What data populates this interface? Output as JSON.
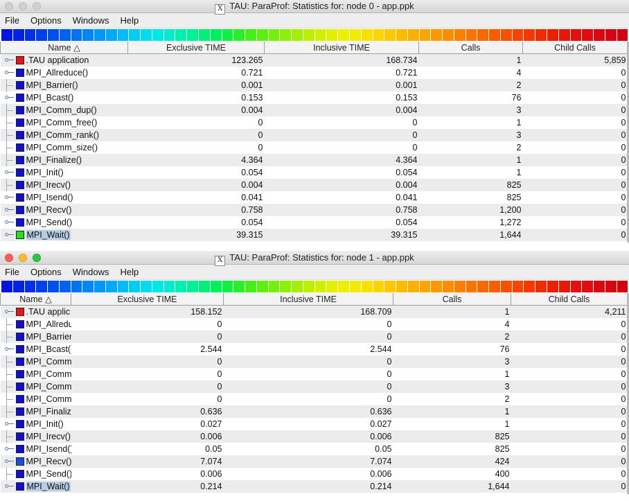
{
  "windows": [
    {
      "title": "TAU: ParaProf: Statistics for: node 0 - app.ppk",
      "active": false,
      "menu": [
        "File",
        "Options",
        "Windows",
        "Help"
      ],
      "columns": [
        "Name △",
        "Exclusive TIME",
        "Inclusive TIME",
        "Calls",
        "Child Calls"
      ],
      "rows": [
        {
          "name": ".TAU application",
          "excl": "123.265",
          "incl": "168.734",
          "calls": "1",
          "child": "5,859",
          "color": "#e8141b",
          "tree": "key"
        },
        {
          "name": "MPI_Allreduce()",
          "excl": "0.721",
          "incl": "0.721",
          "calls": "4",
          "child": "0",
          "color": "#1010d0",
          "tree": "key"
        },
        {
          "name": "MPI_Barrier()",
          "excl": "0.001",
          "incl": "0.001",
          "calls": "2",
          "child": "0",
          "color": "#1010d0",
          "tree": "line"
        },
        {
          "name": "MPI_Bcast()",
          "excl": "0.153",
          "incl": "0.153",
          "calls": "76",
          "child": "0",
          "color": "#1010d0",
          "tree": "key"
        },
        {
          "name": "MPI_Comm_dup()",
          "excl": "0.004",
          "incl": "0.004",
          "calls": "3",
          "child": "0",
          "color": "#1010d0",
          "tree": "line"
        },
        {
          "name": "MPI_Comm_free()",
          "excl": "0",
          "incl": "0",
          "calls": "1",
          "child": "0",
          "color": "#1010d0",
          "tree": "line"
        },
        {
          "name": "MPI_Comm_rank()",
          "excl": "0",
          "incl": "0",
          "calls": "3",
          "child": "0",
          "color": "#1010d0",
          "tree": "line"
        },
        {
          "name": "MPI_Comm_size()",
          "excl": "0",
          "incl": "0",
          "calls": "2",
          "child": "0",
          "color": "#1010d0",
          "tree": "line"
        },
        {
          "name": "MPI_Finalize()",
          "excl": "4.364",
          "incl": "4.364",
          "calls": "1",
          "child": "0",
          "color": "#1010d0",
          "tree": "line"
        },
        {
          "name": "MPI_Init()",
          "excl": "0.054",
          "incl": "0.054",
          "calls": "1",
          "child": "0",
          "color": "#1010d0",
          "tree": "key"
        },
        {
          "name": "MPI_Irecv()",
          "excl": "0.004",
          "incl": "0.004",
          "calls": "825",
          "child": "0",
          "color": "#1010d0",
          "tree": "line"
        },
        {
          "name": "MPI_Isend()",
          "excl": "0.041",
          "incl": "0.041",
          "calls": "825",
          "child": "0",
          "color": "#1010d0",
          "tree": "key"
        },
        {
          "name": "MPI_Recv()",
          "excl": "0.758",
          "incl": "0.758",
          "calls": "1,200",
          "child": "0",
          "color": "#1010d0",
          "tree": "key"
        },
        {
          "name": "MPI_Send()",
          "excl": "0.054",
          "incl": "0.054",
          "calls": "1,272",
          "child": "0",
          "color": "#1010d0",
          "tree": "key"
        },
        {
          "name": "MPI_Wait()",
          "excl": "39.315",
          "incl": "39.315",
          "calls": "1,644",
          "child": "0",
          "color": "#22dd22",
          "tree": "key",
          "selected": true
        }
      ]
    },
    {
      "title": "TAU: ParaProf: Statistics for: node 1 - app.ppk",
      "active": true,
      "menu": [
        "File",
        "Options",
        "Windows",
        "Help"
      ],
      "columns": [
        "Name △",
        "Exclusive TIME",
        "Inclusive TIME",
        "Calls",
        "Child Calls"
      ],
      "rows": [
        {
          "name": ".TAU applic",
          "excl": "158.152",
          "incl": "168.709",
          "calls": "1",
          "child": "4,211",
          "color": "#e8141b",
          "tree": "key"
        },
        {
          "name": "MPI_Allredu",
          "excl": "0",
          "incl": "0",
          "calls": "4",
          "child": "0",
          "color": "#1010d0",
          "tree": "line"
        },
        {
          "name": "MPI_Barrier",
          "excl": "0",
          "incl": "0",
          "calls": "2",
          "child": "0",
          "color": "#1010d0",
          "tree": "line"
        },
        {
          "name": "MPI_Bcast()",
          "excl": "2.544",
          "incl": "2.544",
          "calls": "76",
          "child": "0",
          "color": "#1010d0",
          "tree": "key"
        },
        {
          "name": "MPI_Comm.",
          "excl": "0",
          "incl": "0",
          "calls": "3",
          "child": "0",
          "color": "#1010d0",
          "tree": "line"
        },
        {
          "name": "MPI_Comm.",
          "excl": "0",
          "incl": "0",
          "calls": "1",
          "child": "0",
          "color": "#1010d0",
          "tree": "line"
        },
        {
          "name": "MPI_Comm.",
          "excl": "0",
          "incl": "0",
          "calls": "3",
          "child": "0",
          "color": "#1010d0",
          "tree": "line"
        },
        {
          "name": "MPI_Comm.",
          "excl": "0",
          "incl": "0",
          "calls": "2",
          "child": "0",
          "color": "#1010d0",
          "tree": "line"
        },
        {
          "name": "MPI_Finalize",
          "excl": "0.636",
          "incl": "0.636",
          "calls": "1",
          "child": "0",
          "color": "#1010d0",
          "tree": "line"
        },
        {
          "name": "MPI_Init()",
          "excl": "0.027",
          "incl": "0.027",
          "calls": "1",
          "child": "0",
          "color": "#1010d0",
          "tree": "key"
        },
        {
          "name": "MPI_Irecv()",
          "excl": "0.006",
          "incl": "0.006",
          "calls": "825",
          "child": "0",
          "color": "#1010d0",
          "tree": "line"
        },
        {
          "name": "MPI_Isend()",
          "excl": "0.05",
          "incl": "0.05",
          "calls": "825",
          "child": "0",
          "color": "#1010d0",
          "tree": "key"
        },
        {
          "name": "MPI_Recv()",
          "excl": "7.074",
          "incl": "7.074",
          "calls": "424",
          "child": "0",
          "color": "#1a4ee0",
          "tree": "key"
        },
        {
          "name": "MPI_Send()",
          "excl": "0.006",
          "incl": "0.006",
          "calls": "400",
          "child": "0",
          "color": "#1010d0",
          "tree": "line"
        },
        {
          "name": "MPI_Wait()",
          "excl": "0.214",
          "incl": "0.214",
          "calls": "1,644",
          "child": "0",
          "color": "#1010d0",
          "tree": "key",
          "selected": true
        }
      ]
    }
  ],
  "colorbar": [
    "#0014e0",
    "#0022e4",
    "#0030e8",
    "#0040ec",
    "#0050f0",
    "#0062f2",
    "#0074f4",
    "#0086f6",
    "#0098f8",
    "#00aaf8",
    "#00bcf8",
    "#00ccf4",
    "#00dcf0",
    "#00e8e4",
    "#00eccc",
    "#00f0b0",
    "#00f094",
    "#00f078",
    "#00f05c",
    "#10f040",
    "#28f028",
    "#44f018",
    "#5cf010",
    "#74f00c",
    "#8cf008",
    "#a4f004",
    "#bcf000",
    "#d0f000",
    "#e0f000",
    "#ecf000",
    "#f4ec00",
    "#f8e000",
    "#fcd400",
    "#fcc800",
    "#fcbc00",
    "#fcb000",
    "#fca400",
    "#fc9800",
    "#fc8c00",
    "#fc8000",
    "#fc7400",
    "#fc6800",
    "#fc5c00",
    "#fc5000",
    "#f84400",
    "#f43800",
    "#f02c00",
    "#ec2000",
    "#e81808",
    "#e41010",
    "#e00c10",
    "#dc0810",
    "#d80410",
    "#d40010"
  ]
}
